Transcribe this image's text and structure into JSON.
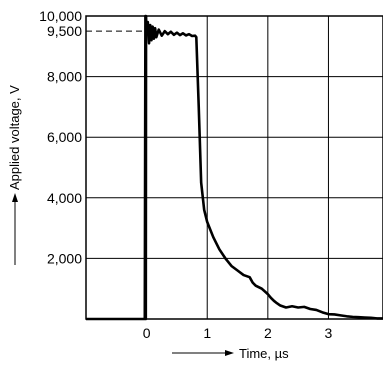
{
  "chart_data": {
    "type": "line",
    "title": "",
    "xlabel": "Time, µs",
    "ylabel": "Applied voltage, V",
    "xlim": [
      -1,
      3.9
    ],
    "ylim": [
      0,
      10000
    ],
    "grid": true,
    "x_ticks": [
      {
        "value": 0,
        "label": "0"
      },
      {
        "value": 1,
        "label": "1"
      },
      {
        "value": 2,
        "label": "2"
      },
      {
        "value": 3,
        "label": "3"
      }
    ],
    "y_ticks": [
      {
        "value": 2000,
        "label": "2,000"
      },
      {
        "value": 4000,
        "label": "4,000"
      },
      {
        "value": 6000,
        "label": "6,000"
      },
      {
        "value": 8000,
        "label": "8,000"
      },
      {
        "value": 9500,
        "label": "9,500"
      },
      {
        "value": 10000,
        "label": "10,000"
      }
    ],
    "reference_line": {
      "y": 9500
    },
    "series": [
      {
        "points": [
          [
            -1.0,
            0
          ],
          [
            -0.03,
            0
          ],
          [
            -0.02,
            10000
          ],
          [
            -0.015,
            0
          ],
          [
            -0.01,
            10000
          ],
          [
            0.0,
            9400
          ],
          [
            0.02,
            9800
          ],
          [
            0.04,
            9100
          ],
          [
            0.06,
            9700
          ],
          [
            0.08,
            9200
          ],
          [
            0.1,
            9650
          ],
          [
            0.12,
            9250
          ],
          [
            0.14,
            9600
          ],
          [
            0.16,
            9300
          ],
          [
            0.2,
            9550
          ],
          [
            0.25,
            9350
          ],
          [
            0.3,
            9500
          ],
          [
            0.35,
            9400
          ],
          [
            0.4,
            9480
          ],
          [
            0.45,
            9380
          ],
          [
            0.5,
            9450
          ],
          [
            0.55,
            9370
          ],
          [
            0.6,
            9430
          ],
          [
            0.65,
            9360
          ],
          [
            0.7,
            9400
          ],
          [
            0.75,
            9340
          ],
          [
            0.8,
            9350
          ],
          [
            0.82,
            9300
          ],
          [
            0.86,
            7000
          ],
          [
            0.9,
            4500
          ],
          [
            0.95,
            3600
          ],
          [
            1.0,
            3200
          ],
          [
            1.1,
            2700
          ],
          [
            1.2,
            2300
          ],
          [
            1.3,
            2000
          ],
          [
            1.4,
            1750
          ],
          [
            1.5,
            1600
          ],
          [
            1.6,
            1450
          ],
          [
            1.7,
            1380
          ],
          [
            1.75,
            1200
          ],
          [
            1.8,
            1100
          ],
          [
            1.9,
            1000
          ],
          [
            2.0,
            820
          ],
          [
            2.05,
            700
          ],
          [
            2.1,
            600
          ],
          [
            2.15,
            520
          ],
          [
            2.2,
            450
          ],
          [
            2.3,
            380
          ],
          [
            2.4,
            420
          ],
          [
            2.5,
            380
          ],
          [
            2.6,
            400
          ],
          [
            2.7,
            330
          ],
          [
            2.8,
            300
          ],
          [
            2.9,
            220
          ],
          [
            3.0,
            160
          ],
          [
            3.1,
            150
          ],
          [
            3.2,
            120
          ],
          [
            3.3,
            90
          ],
          [
            3.4,
            70
          ],
          [
            3.5,
            60
          ],
          [
            3.6,
            50
          ],
          [
            3.7,
            40
          ],
          [
            3.8,
            20
          ],
          [
            3.9,
            20
          ]
        ]
      }
    ]
  }
}
